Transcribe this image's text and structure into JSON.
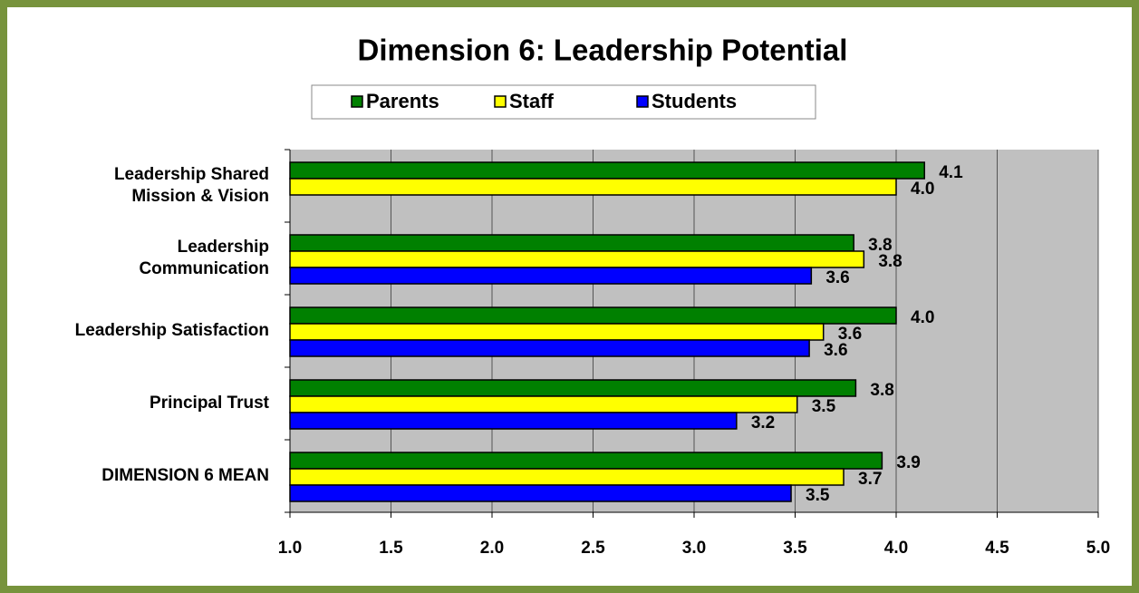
{
  "chart_data": {
    "type": "barh",
    "title": "Dimension 6: Leadership Potential",
    "categories": [
      [
        "Leadership Shared",
        "Mission & Vision"
      ],
      [
        "Leadership",
        "Communication"
      ],
      [
        "Leadership Satisfaction"
      ],
      [
        "Principal Trust"
      ],
      [
        "DIMENSION 6 MEAN"
      ]
    ],
    "series": [
      {
        "name": "Parents",
        "color": "#008000",
        "values": [
          4.14,
          3.79,
          4.0,
          3.8,
          3.93
        ],
        "value_labels": [
          "4.1",
          "3.8",
          "4.0",
          "3.8",
          "3.9"
        ]
      },
      {
        "name": "Staff",
        "color": "#ffff00",
        "values": [
          4.0,
          3.84,
          3.64,
          3.51,
          3.74
        ],
        "value_labels": [
          "4.0",
          "3.8",
          "3.6",
          "3.5",
          "3.7"
        ]
      },
      {
        "name": "Students",
        "color": "#0000ff",
        "values": [
          null,
          3.58,
          3.57,
          3.21,
          3.48
        ],
        "value_labels": [
          null,
          "3.6",
          "3.6",
          "3.2",
          "3.5"
        ]
      }
    ],
    "xlim": [
      1,
      5
    ],
    "xticks": [
      {
        "value": 1,
        "label": "1.0"
      },
      {
        "value": 1.5,
        "label": "1.5"
      },
      {
        "value": 2,
        "label": "2.0"
      },
      {
        "value": 2.5,
        "label": "2.5"
      },
      {
        "value": 3,
        "label": "3.0"
      },
      {
        "value": 3.5,
        "label": "3.5"
      },
      {
        "value": 4,
        "label": "4.0"
      },
      {
        "value": 4.5,
        "label": "4.5"
      },
      {
        "value": 5,
        "label": "5.0"
      }
    ],
    "grid": true,
    "legend": "top"
  }
}
